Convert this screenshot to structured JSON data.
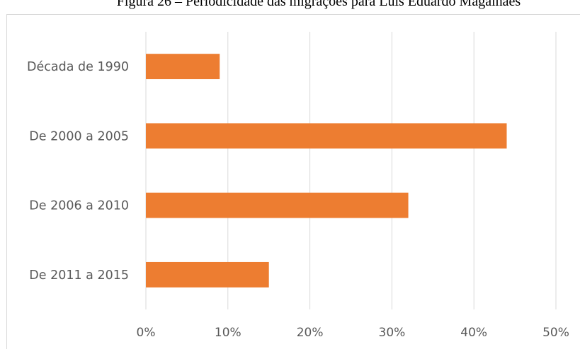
{
  "figure": {
    "caption": "Figura 26 – Periodicidade das migrações para Luís Eduardo Magalhães"
  },
  "chart_data": {
    "type": "bar",
    "orientation": "horizontal",
    "title": "",
    "xlabel": "",
    "ylabel": "",
    "categories": [
      "Década de 1990",
      "De 2000 a 2005",
      "De 2006 a 2010",
      "De 2011 a 2015"
    ],
    "values": [
      9,
      44,
      32,
      15
    ],
    "value_unit": "%",
    "xlim": [
      0,
      50
    ],
    "x_ticks": [
      0,
      10,
      20,
      30,
      40,
      50
    ],
    "x_tick_labels": [
      "0%",
      "10%",
      "20%",
      "30%",
      "40%",
      "50%"
    ],
    "grid": "vertical",
    "legend": "none",
    "bar_color": "#ed7d31",
    "grid_color": "#d9d9d9",
    "label_color": "#595959"
  }
}
